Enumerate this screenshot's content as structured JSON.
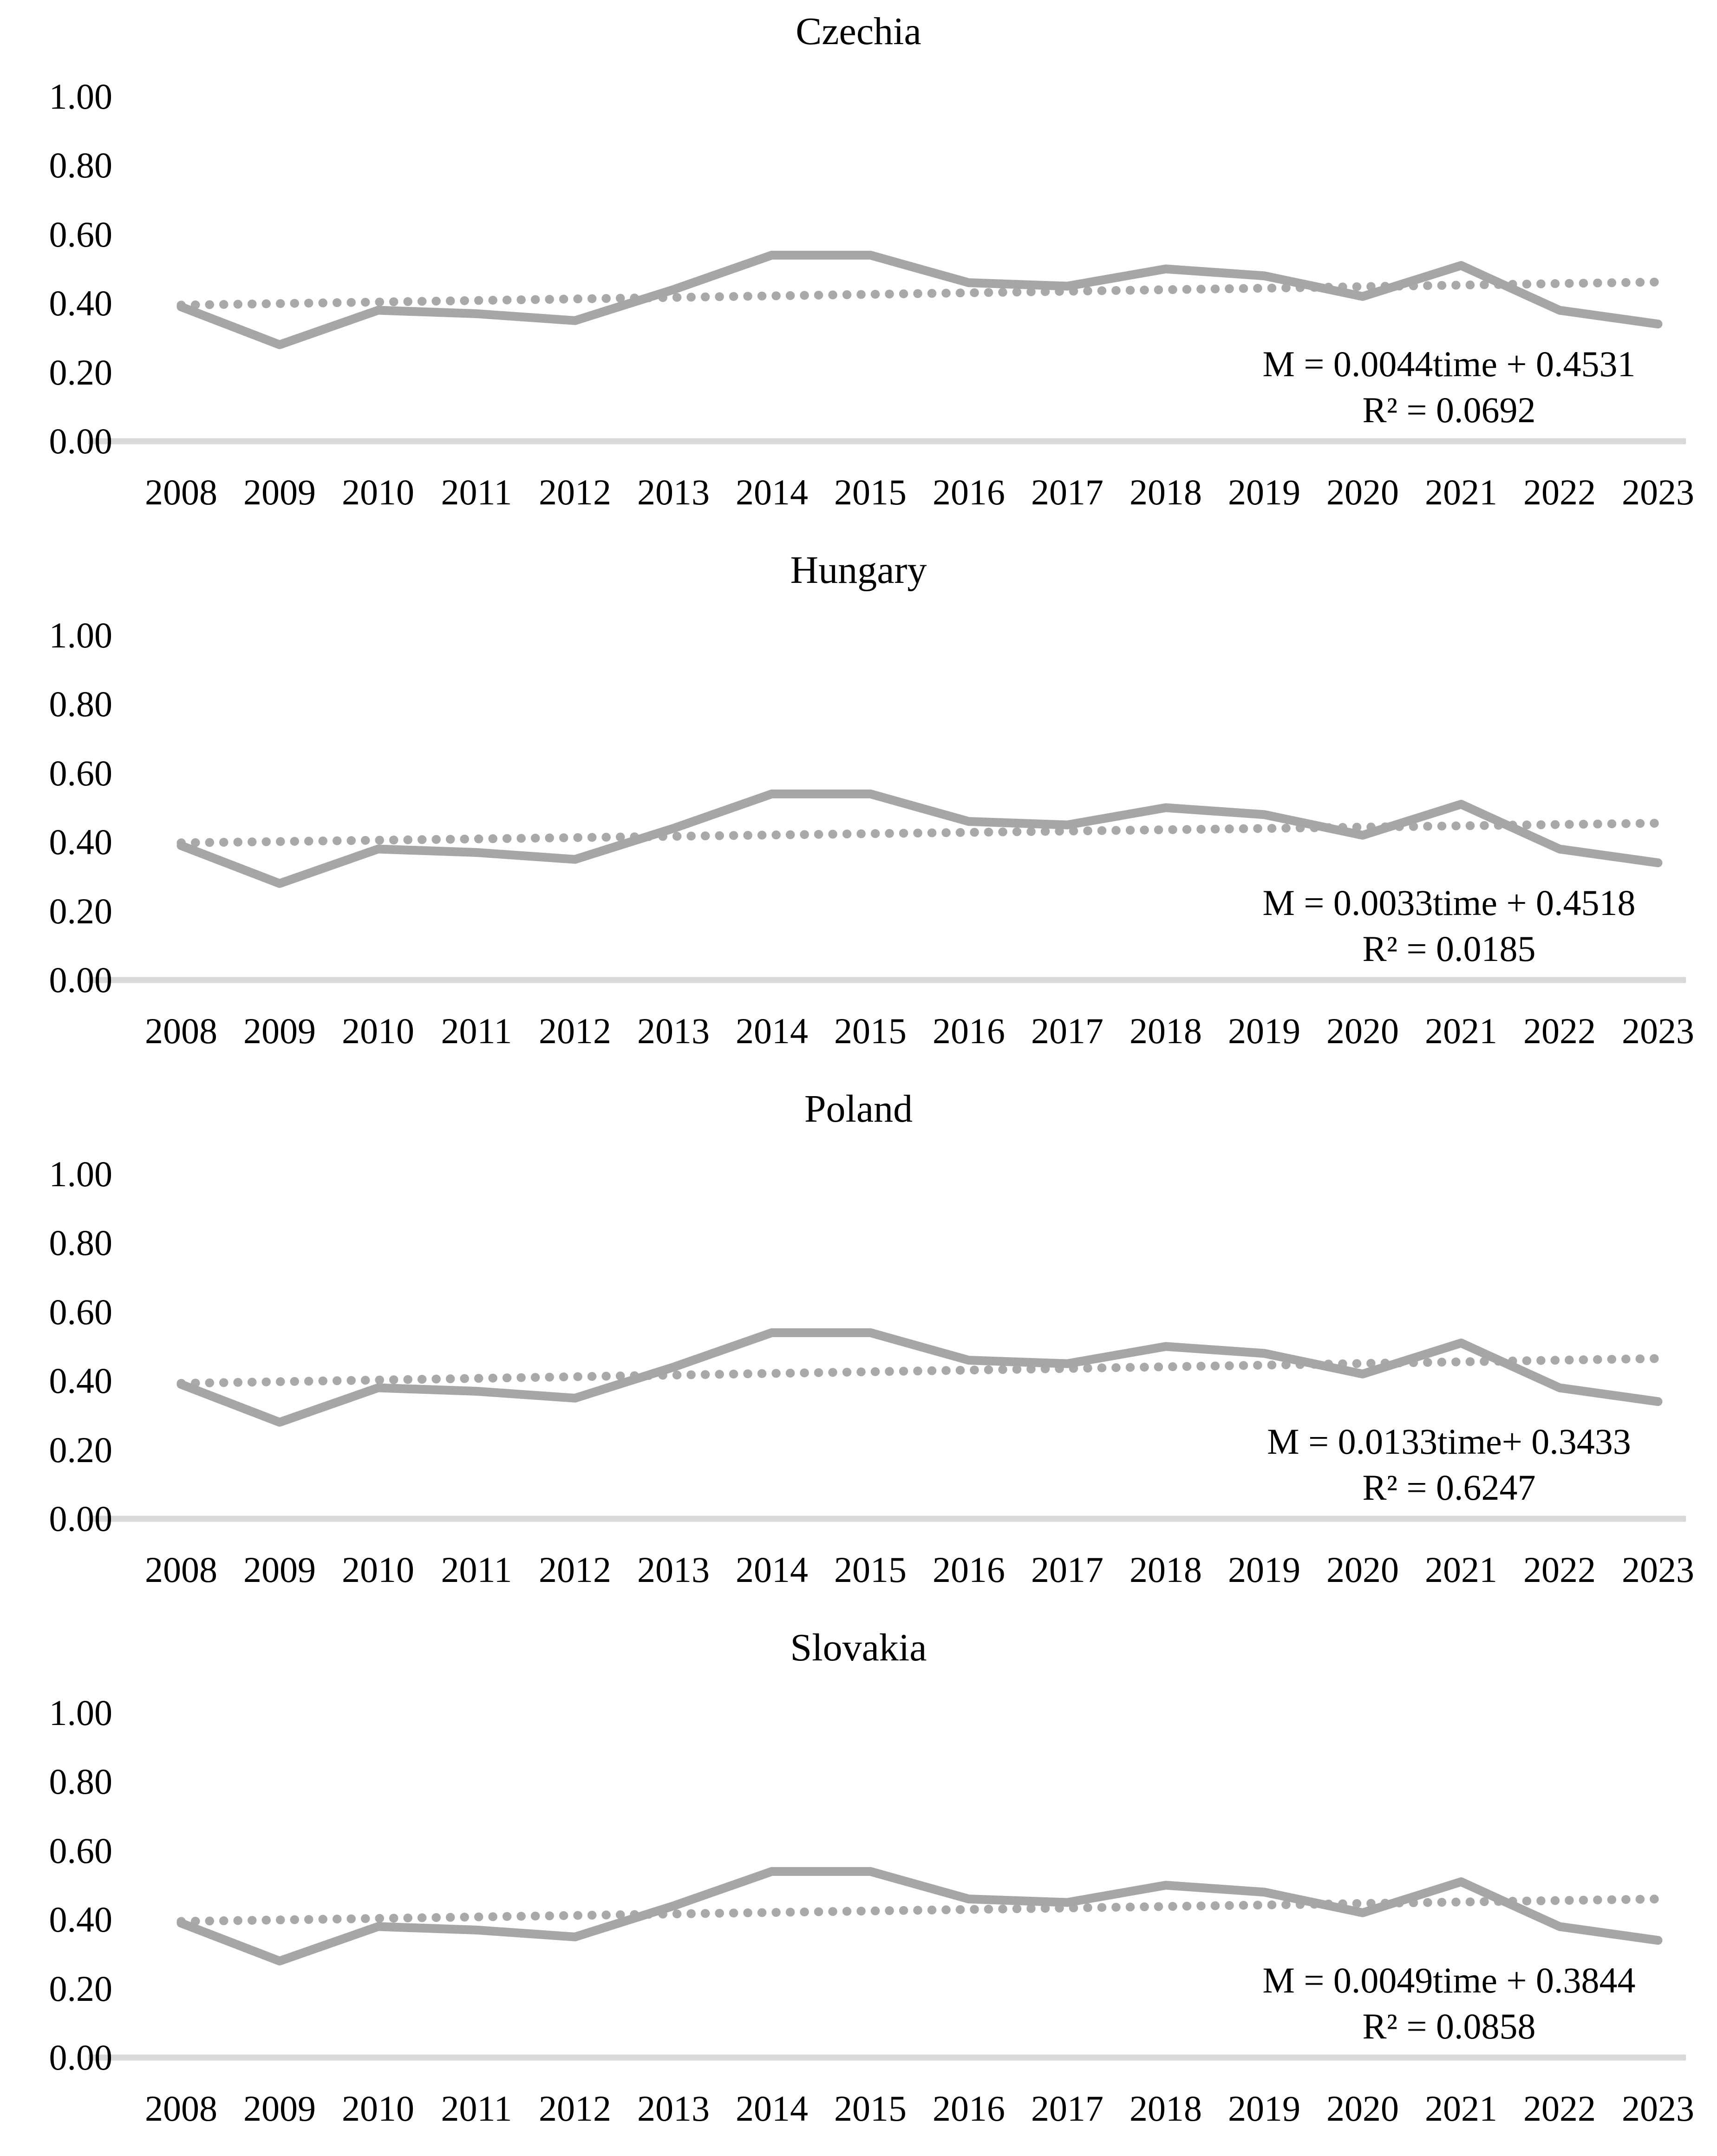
{
  "page": {
    "background": "#ffffff",
    "text_color": "#000000",
    "figure_type": "small-multiples line charts, 4 stacked panels"
  },
  "styles": {
    "series_color": "#a6a6a6",
    "trendline_color": "#a9a9a9",
    "axis_line_color": "#d9d9d9"
  },
  "chart_data": [
    {
      "type": "line",
      "title": "Czechia",
      "x": [
        2008,
        2009,
        2010,
        2011,
        2012,
        2013,
        2014,
        2015,
        2016,
        2017,
        2018,
        2019,
        2020,
        2021,
        2022,
        2023
      ],
      "series": [
        {
          "name": "M",
          "values": [
            0.39,
            0.28,
            0.38,
            0.37,
            0.35,
            0.44,
            0.54,
            0.54,
            0.46,
            0.45,
            0.5,
            0.48,
            0.42,
            0.51,
            0.38,
            0.34
          ]
        }
      ],
      "trendline": {
        "type": "linear",
        "start_value": 0.395,
        "end_value": 0.462
      },
      "equation_line1": "M = 0.0044time + 0.4531",
      "equation_line2": "R² = 0.0692",
      "xlabel": "",
      "ylabel": "",
      "ylim": [
        0,
        1
      ],
      "yticks": [
        "1.00",
        "0.80",
        "0.60",
        "0.40",
        "0.20",
        "0.00"
      ],
      "ytick_values": [
        1.0,
        0.8,
        0.6,
        0.4,
        0.2,
        0.0
      ],
      "grid": false,
      "legend": "none"
    },
    {
      "type": "line",
      "title": "Hungary",
      "x": [
        2008,
        2009,
        2010,
        2011,
        2012,
        2013,
        2014,
        2015,
        2016,
        2017,
        2018,
        2019,
        2020,
        2021,
        2022,
        2023
      ],
      "series": [
        {
          "name": "M",
          "values": [
            0.39,
            0.28,
            0.38,
            0.37,
            0.35,
            0.44,
            0.54,
            0.54,
            0.46,
            0.45,
            0.5,
            0.48,
            0.42,
            0.51,
            0.38,
            0.34
          ]
        }
      ],
      "trendline": {
        "type": "linear",
        "start_value": 0.398,
        "end_value": 0.455
      },
      "equation_line1": "M = 0.0033time + 0.4518",
      "equation_line2": "R² = 0.0185",
      "xlabel": "",
      "ylabel": "",
      "ylim": [
        0,
        1
      ],
      "yticks": [
        "1.00",
        "0.80",
        "0.60",
        "0.40",
        "0.20",
        "0.00"
      ],
      "ytick_values": [
        1.0,
        0.8,
        0.6,
        0.4,
        0.2,
        0.0
      ],
      "grid": false,
      "legend": "none"
    },
    {
      "type": "line",
      "title": "Poland",
      "x": [
        2008,
        2009,
        2010,
        2011,
        2012,
        2013,
        2014,
        2015,
        2016,
        2017,
        2018,
        2019,
        2020,
        2021,
        2022,
        2023
      ],
      "series": [
        {
          "name": "M",
          "values": [
            0.39,
            0.28,
            0.38,
            0.37,
            0.35,
            0.44,
            0.54,
            0.54,
            0.46,
            0.45,
            0.5,
            0.48,
            0.42,
            0.51,
            0.38,
            0.34
          ]
        }
      ],
      "trendline": {
        "type": "linear",
        "start_value": 0.393,
        "end_value": 0.465
      },
      "equation_line1": "M = 0.0133time+ 0.3433",
      "equation_line2": "R² = 0.6247",
      "xlabel": "",
      "ylabel": "",
      "ylim": [
        0,
        1
      ],
      "yticks": [
        "1.00",
        "0.80",
        "0.60",
        "0.40",
        "0.20",
        "0.00"
      ],
      "ytick_values": [
        1.0,
        0.8,
        0.6,
        0.4,
        0.2,
        0.0
      ],
      "grid": false,
      "legend": "none"
    },
    {
      "type": "line",
      "title": "Slovakia",
      "x": [
        2008,
        2009,
        2010,
        2011,
        2012,
        2013,
        2014,
        2015,
        2016,
        2017,
        2018,
        2019,
        2020,
        2021,
        2022,
        2023
      ],
      "series": [
        {
          "name": "M",
          "values": [
            0.39,
            0.28,
            0.38,
            0.37,
            0.35,
            0.44,
            0.54,
            0.54,
            0.46,
            0.45,
            0.5,
            0.48,
            0.42,
            0.51,
            0.38,
            0.34
          ]
        }
      ],
      "trendline": {
        "type": "linear",
        "start_value": 0.395,
        "end_value": 0.46
      },
      "equation_line1": "M = 0.0049time + 0.3844",
      "equation_line2": "R² = 0.0858",
      "xlabel": "",
      "ylabel": "",
      "ylim": [
        0,
        1
      ],
      "yticks": [
        "1.00",
        "0.80",
        "0.60",
        "0.40",
        "0.20",
        "0.00"
      ],
      "ytick_values": [
        1.0,
        0.8,
        0.6,
        0.4,
        0.2,
        0.0
      ],
      "grid": false,
      "legend": "none"
    }
  ]
}
